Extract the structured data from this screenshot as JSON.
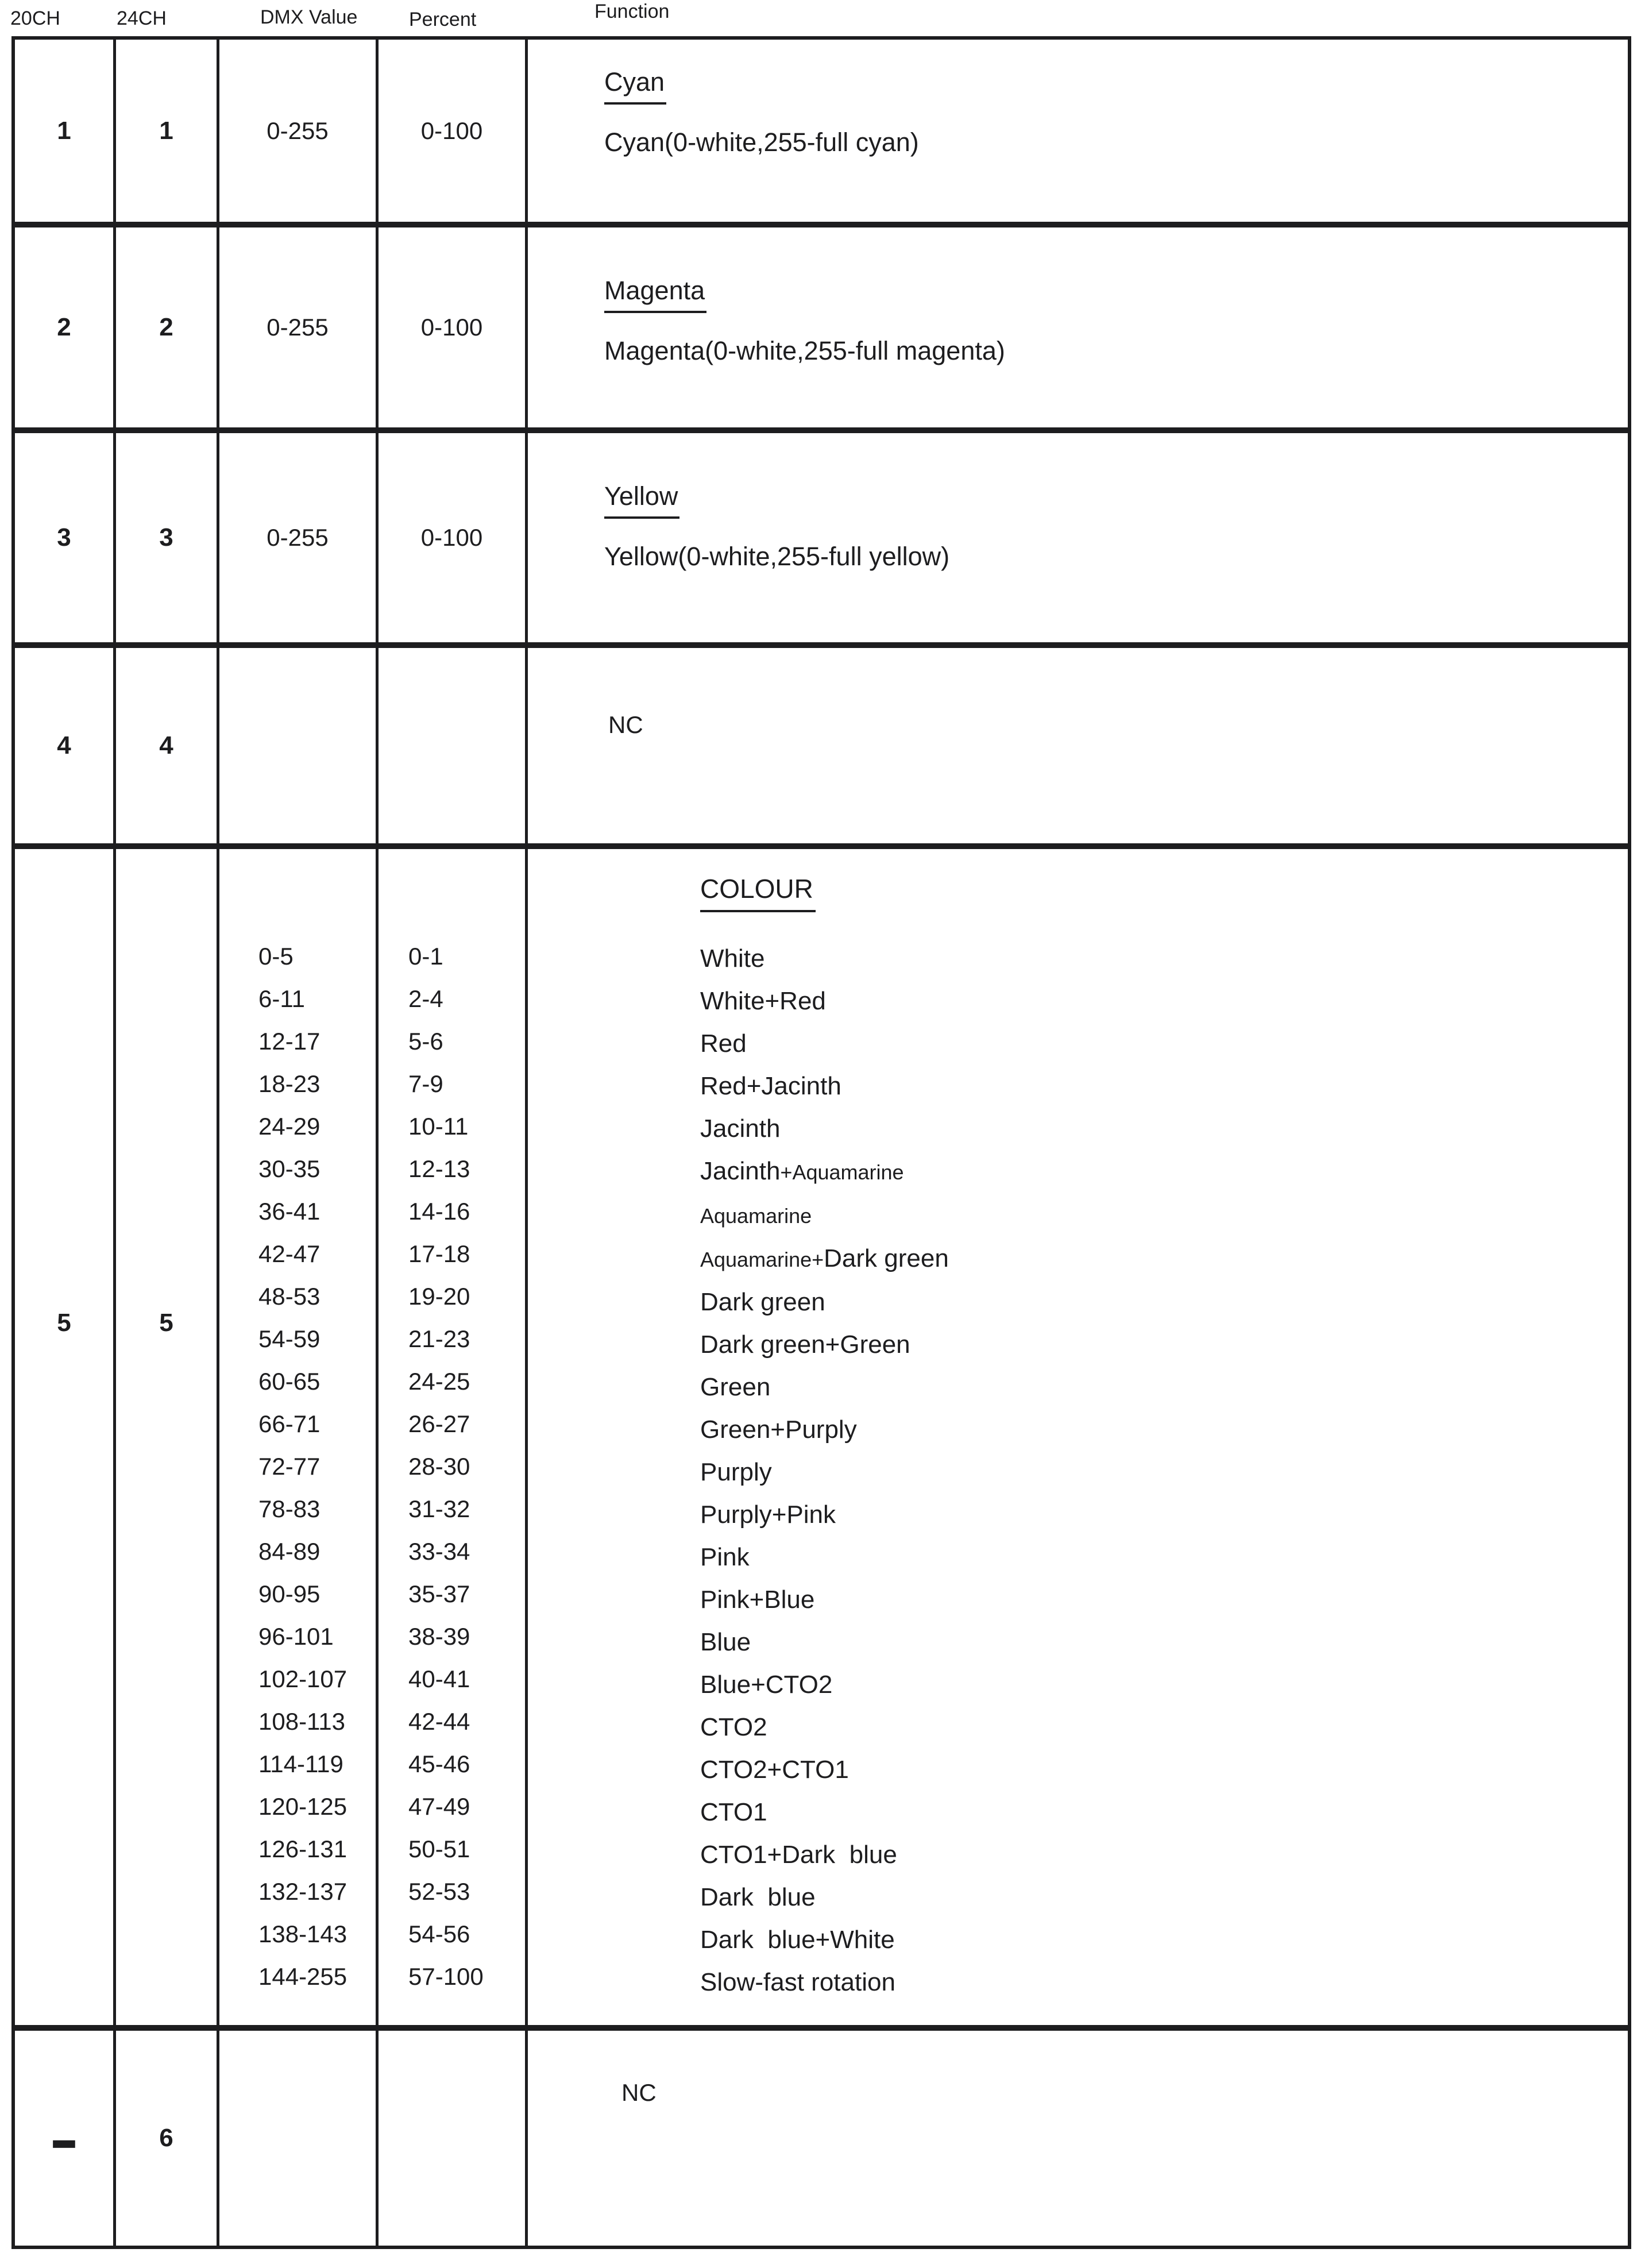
{
  "header": {
    "columns": [
      {
        "id": "ch20",
        "label": "20CH"
      },
      {
        "id": "ch24",
        "label": "24CH"
      },
      {
        "id": "dmx",
        "label": "DMX Value"
      },
      {
        "id": "percent",
        "label": "Percent"
      },
      {
        "id": "function",
        "label": "Function"
      }
    ]
  },
  "rows": [
    {
      "ch20": "1",
      "ch24": "1",
      "dmx": "0-255",
      "percent": "0-100",
      "function_heading": "Cyan",
      "function_body": "Cyan(0-white,255-full cyan)"
    },
    {
      "ch20": "2",
      "ch24": "2",
      "dmx": "0-255",
      "percent": "0-100",
      "function_heading": "Magenta",
      "function_body": "Magenta(0-white,255-full magenta)"
    },
    {
      "ch20": "3",
      "ch24": "3",
      "dmx": "0-255",
      "percent": "0-100",
      "function_heading": "Yellow",
      "function_body": "Yellow(0-white,255-full yellow)"
    },
    {
      "ch20": "4",
      "ch24": "4",
      "dmx": "",
      "percent": "",
      "function_body": "NC"
    },
    {
      "ch20": "5",
      "ch24": "5",
      "function_heading": "COLOUR",
      "entries": [
        {
          "dmx": "0-5",
          "percent": "0-1",
          "label": "White"
        },
        {
          "dmx": "6-11",
          "percent": "2-4",
          "label": "White+Red"
        },
        {
          "dmx": "12-17",
          "percent": "5-6",
          "label": "Red"
        },
        {
          "dmx": "18-23",
          "percent": "7-9",
          "label": "Red+Jacinth"
        },
        {
          "dmx": "24-29",
          "percent": "10-11",
          "label": "Jacinth"
        },
        {
          "dmx": "30-35",
          "percent": "12-13",
          "label": "Jacinth+Aquamarine",
          "parts": [
            {
              "t": "Jacinth",
              "s": "n"
            },
            {
              "t": "+Aquamarine",
              "s": "s"
            }
          ]
        },
        {
          "dmx": "36-41",
          "percent": "14-16",
          "label": "Aquamarine",
          "parts": [
            {
              "t": "Aquamarine",
              "s": "s"
            }
          ]
        },
        {
          "dmx": "42-47",
          "percent": "17-18",
          "label": "Aquamarine+Dark green",
          "parts": [
            {
              "t": "Aquamarine+",
              "s": "s"
            },
            {
              "t": "Dark green",
              "s": "n"
            }
          ]
        },
        {
          "dmx": "48-53",
          "percent": "19-20",
          "label": "Dark green"
        },
        {
          "dmx": "54-59",
          "percent": "21-23",
          "label": "Dark green+Green"
        },
        {
          "dmx": "60-65",
          "percent": "24-25",
          "label": "Green"
        },
        {
          "dmx": "66-71",
          "percent": "26-27",
          "label": "Green+Purply"
        },
        {
          "dmx": "72-77",
          "percent": "28-30",
          "label": "Purply"
        },
        {
          "dmx": "78-83",
          "percent": "31-32",
          "label": "Purply+Pink"
        },
        {
          "dmx": "84-89",
          "percent": "33-34",
          "label": "Pink"
        },
        {
          "dmx": "90-95",
          "percent": "35-37",
          "label": "Pink+Blue"
        },
        {
          "dmx": "96-101",
          "percent": "38-39",
          "label": "Blue"
        },
        {
          "dmx": "102-107",
          "percent": "40-41",
          "label": "Blue+CTO2"
        },
        {
          "dmx": "108-113",
          "percent": "42-44",
          "label": "CTO2"
        },
        {
          "dmx": "114-119",
          "percent": "45-46",
          "label": "CTO2+CTO1"
        },
        {
          "dmx": "120-125",
          "percent": "47-49",
          "label": "CTO1"
        },
        {
          "dmx": "126-131",
          "percent": "50-51",
          "label": "CTO1+Dark  blue"
        },
        {
          "dmx": "132-137",
          "percent": "52-53",
          "label": "Dark  blue"
        },
        {
          "dmx": "138-143",
          "percent": "54-56",
          "label": "Dark  blue+White"
        },
        {
          "dmx": "144-255",
          "percent": "57-100",
          "label": "Slow-fast rotation"
        }
      ]
    },
    {
      "ch20": "–",
      "ch24": "6",
      "dmx": "",
      "percent": "",
      "function_body": "NC"
    }
  ],
  "colors": {
    "ink": "#1d1d1f",
    "background": "#ffffff"
  }
}
